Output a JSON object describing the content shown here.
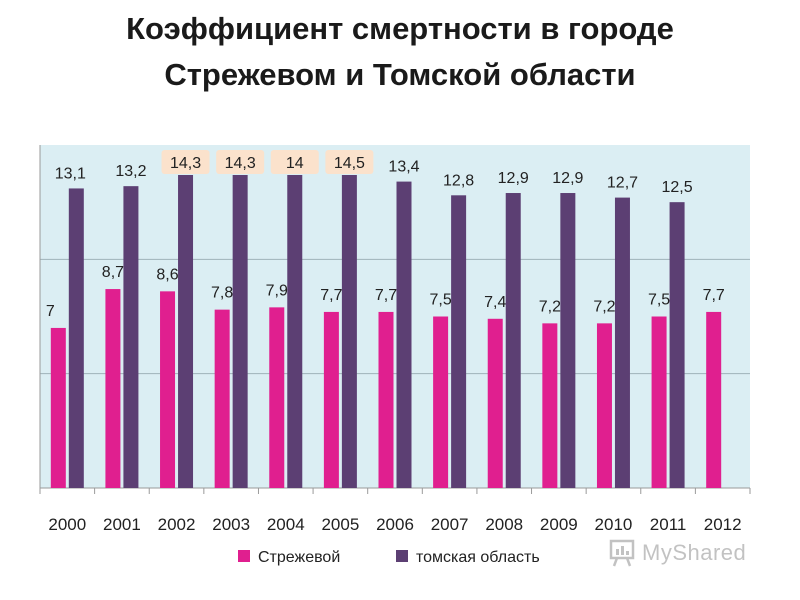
{
  "title": {
    "line1": "Коэффициент смертности в городе",
    "line2": "Стрежевом и Томской области"
  },
  "watermark": {
    "text": "MyShared",
    "icon": "presentation-board-icon"
  },
  "chart_data": {
    "type": "bar",
    "categories": [
      "2000",
      "2001",
      "2002",
      "2003",
      "2004",
      "2005",
      "2006",
      "2007",
      "2008",
      "2009",
      "2010",
      "2011",
      "2012"
    ],
    "series": [
      {
        "name": "Стрежевой",
        "color": "#e01f8f",
        "values": [
          7,
          8.7,
          8.6,
          7.8,
          7.9,
          7.7,
          7.7,
          7.5,
          7.4,
          7.2,
          7.2,
          7.5,
          7.7
        ],
        "labels": [
          "7",
          "8,7",
          "8,6",
          "7,8",
          "7,9",
          "7,7",
          "7,7",
          "7,5",
          "7,4",
          "7,2",
          "7,2",
          "7,5",
          "7,7"
        ]
      },
      {
        "name": "томская область",
        "color": "#5c3f73",
        "values": [
          13.1,
          13.2,
          14.3,
          14.3,
          14,
          14.5,
          13.4,
          12.8,
          12.9,
          12.9,
          12.7,
          12.5,
          null
        ],
        "labels": [
          "13,1",
          "13,2",
          "14,3",
          "14,3",
          "14",
          "14,5",
          "13,4",
          "12,8",
          "12,9",
          "12,9",
          "12,7",
          "12,5",
          ""
        ]
      }
    ],
    "highlighted_labels": [
      "14,3",
      "14,3",
      "14",
      "14,5"
    ],
    "ylim": [
      0,
      15
    ],
    "grid": true,
    "legend_position": "bottom",
    "plot_background": "#dbeef3",
    "highlight_color": "#fbe2cc"
  }
}
